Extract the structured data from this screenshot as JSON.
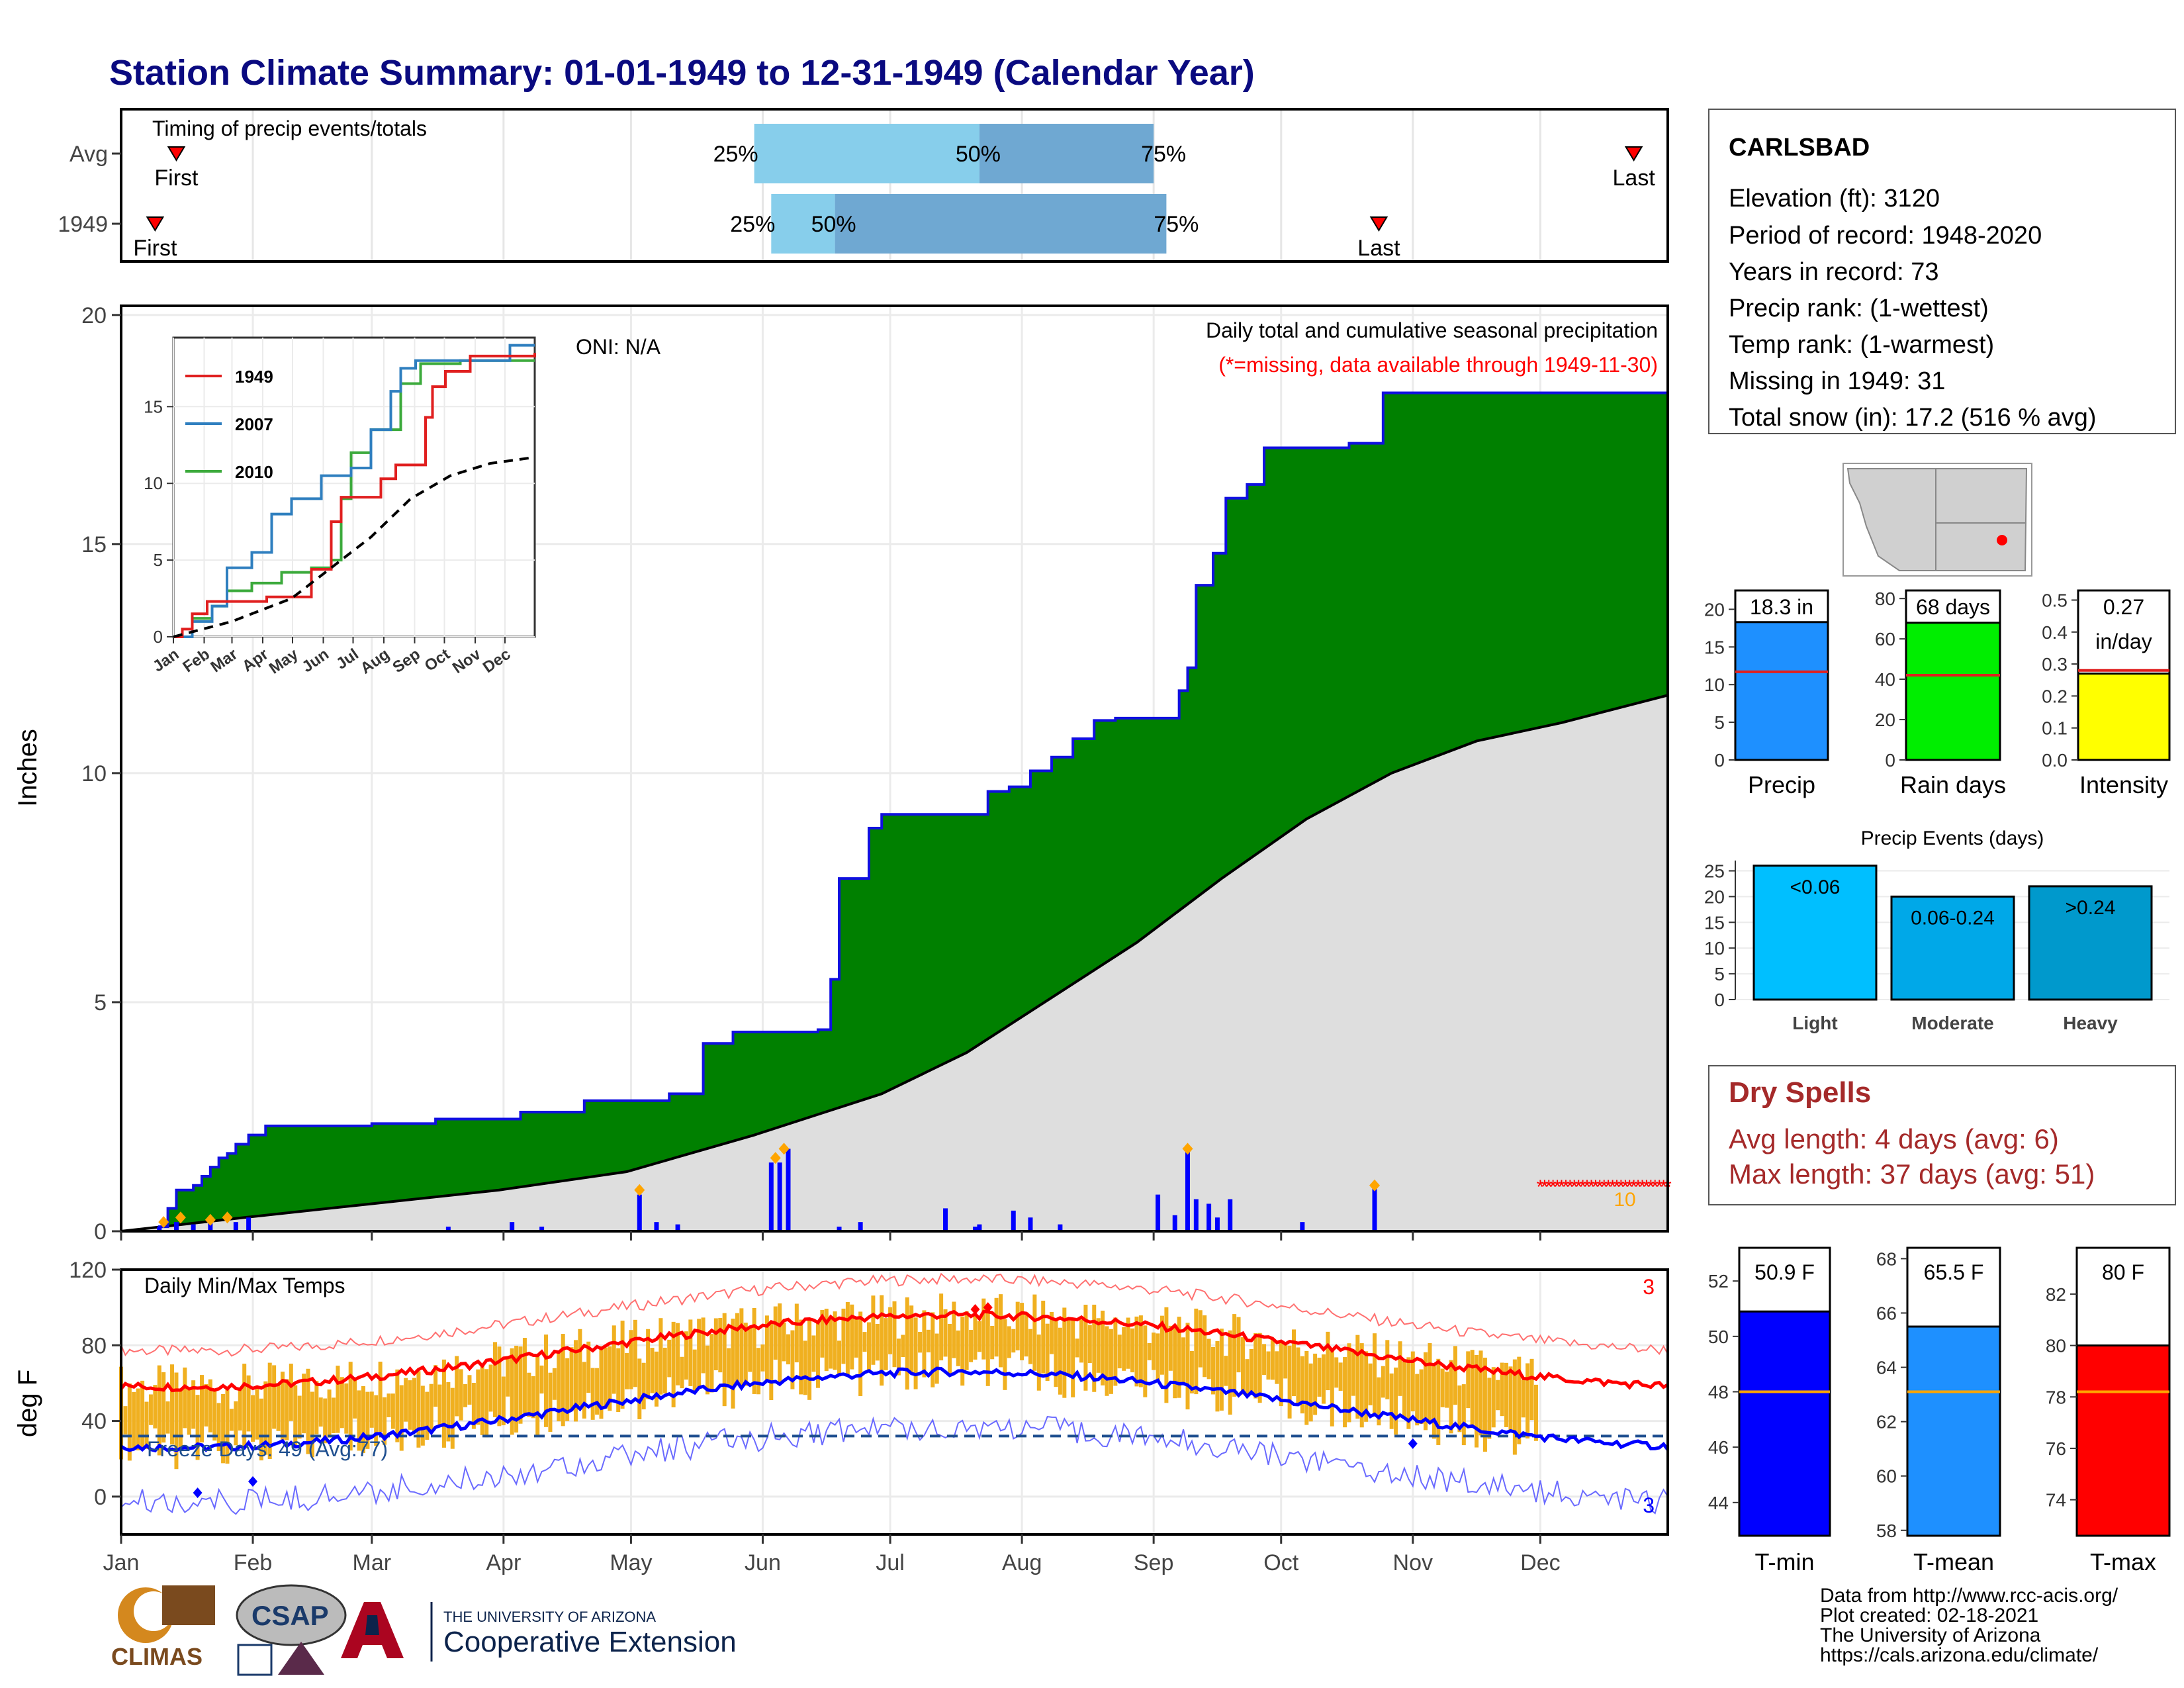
{
  "title": "Station Climate Summary: 01-01-1949 to 12-31-1949 (Calendar Year)",
  "months": [
    "Jan",
    "Feb",
    "Mar",
    "Apr",
    "May",
    "Jun",
    "Jul",
    "Aug",
    "Sep",
    "Oct",
    "Nov",
    "Dec"
  ],
  "timing": {
    "label": "Timing of precip events/totals",
    "rows": [
      {
        "name": "Avg",
        "first_doy": 14,
        "last_doy": 357,
        "q25": 150,
        "q50": 203,
        "q75": 244
      },
      {
        "name": "1949",
        "first_doy": 9,
        "last_doy": 297,
        "q25": 154,
        "q50": 169,
        "q75": 247
      }
    ],
    "first_label": "First",
    "last_label": "Last",
    "pct25": "25%",
    "pct50": "50%",
    "pct75": "75%"
  },
  "precip": {
    "oni": "ONI: N/A",
    "subtitle": "Daily total and cumulative seasonal precipitation",
    "missing_note": "(*=missing, data available through 1949-11-30)",
    "ylabel": "Inches",
    "yticks": [
      "0",
      "5",
      "10",
      "15",
      "20"
    ],
    "missing_count": "10",
    "cum_1949": [
      [
        1,
        0
      ],
      [
        10,
        0.1
      ],
      [
        12,
        0.5
      ],
      [
        14,
        0.9
      ],
      [
        18,
        1.0
      ],
      [
        20,
        1.2
      ],
      [
        22,
        1.4
      ],
      [
        24,
        1.6
      ],
      [
        26,
        1.7
      ],
      [
        28,
        1.9
      ],
      [
        31,
        2.1
      ],
      [
        35,
        2.3
      ],
      [
        50,
        2.3
      ],
      [
        60,
        2.35
      ],
      [
        75,
        2.45
      ],
      [
        95,
        2.6
      ],
      [
        110,
        2.85
      ],
      [
        125,
        2.85
      ],
      [
        130,
        3.0
      ],
      [
        135,
        3.0
      ],
      [
        138,
        4.1
      ],
      [
        145,
        4.35
      ],
      [
        165,
        4.4
      ],
      [
        168,
        5.5
      ],
      [
        170,
        7.7
      ],
      [
        174,
        7.7
      ],
      [
        177,
        8.8
      ],
      [
        180,
        9.1
      ],
      [
        200,
        9.1
      ],
      [
        205,
        9.6
      ],
      [
        210,
        9.7
      ],
      [
        215,
        10.05
      ],
      [
        220,
        10.35
      ],
      [
        225,
        10.75
      ],
      [
        230,
        11.15
      ],
      [
        235,
        11.2
      ],
      [
        245,
        11.2
      ],
      [
        250,
        11.8
      ],
      [
        252,
        12.3
      ],
      [
        254,
        14.1
      ],
      [
        258,
        14.8
      ],
      [
        261,
        16.0
      ],
      [
        266,
        16.3
      ],
      [
        270,
        17.1
      ],
      [
        285,
        17.1
      ],
      [
        290,
        17.2
      ],
      [
        296,
        17.2
      ],
      [
        298,
        18.3
      ],
      [
        365,
        18.3
      ]
    ],
    "cum_avg": [
      [
        1,
        0
      ],
      [
        30,
        0.3
      ],
      [
        60,
        0.6
      ],
      [
        90,
        0.9
      ],
      [
        120,
        1.3
      ],
      [
        150,
        2.1
      ],
      [
        180,
        3.0
      ],
      [
        200,
        3.9
      ],
      [
        220,
        5.1
      ],
      [
        240,
        6.3
      ],
      [
        260,
        7.7
      ],
      [
        280,
        9.0
      ],
      [
        300,
        10.0
      ],
      [
        320,
        10.7
      ],
      [
        340,
        11.1
      ],
      [
        365,
        11.7
      ]
    ],
    "daily": [
      [
        10,
        0.1
      ],
      [
        14,
        0.2
      ],
      [
        18,
        0.15
      ],
      [
        22,
        0.2
      ],
      [
        28,
        0.2
      ],
      [
        31,
        0.3
      ],
      [
        78,
        0.1
      ],
      [
        93,
        0.2
      ],
      [
        100,
        0.1
      ],
      [
        123,
        0.8
      ],
      [
        127,
        0.2
      ],
      [
        132,
        0.15
      ],
      [
        154,
        1.5
      ],
      [
        156,
        1.5
      ],
      [
        158,
        1.8
      ],
      [
        170,
        0.1
      ],
      [
        175,
        0.2
      ],
      [
        195,
        0.5
      ],
      [
        202,
        0.1
      ],
      [
        203,
        0.15
      ],
      [
        211,
        0.45
      ],
      [
        215,
        0.3
      ],
      [
        222,
        0.15
      ],
      [
        245,
        0.8
      ],
      [
        249,
        0.35
      ],
      [
        252,
        1.8
      ],
      [
        254,
        0.7
      ],
      [
        257,
        0.6
      ],
      [
        259,
        0.3
      ],
      [
        262,
        0.7
      ],
      [
        279,
        0.2
      ],
      [
        296,
        1.0
      ]
    ],
    "marked_days": [
      [
        11,
        0.2
      ],
      [
        15,
        0.3
      ],
      [
        22,
        0.25
      ],
      [
        26,
        0.3
      ],
      [
        123,
        0.9
      ],
      [
        155,
        1.6
      ],
      [
        157,
        1.8
      ],
      [
        252,
        1.8
      ],
      [
        296,
        1.0
      ]
    ],
    "missing_days": [
      335,
      365
    ]
  },
  "inset": {
    "legend": [
      {
        "name": "1949",
        "color": "#e01f1f"
      },
      {
        "name": "2007",
        "color": "#2f7fbf"
      },
      {
        "name": "2010",
        "color": "#3caa3c"
      }
    ],
    "yticks": [
      "0",
      "5",
      "10",
      "15"
    ],
    "ymax": 19.5,
    "y1949": [
      [
        1,
        0
      ],
      [
        10,
        0.5
      ],
      [
        20,
        1.5
      ],
      [
        35,
        2.3
      ],
      [
        95,
        2.6
      ],
      [
        140,
        4.4
      ],
      [
        155,
        4.4
      ],
      [
        160,
        7.5
      ],
      [
        170,
        9.1
      ],
      [
        210,
        10.3
      ],
      [
        225,
        11.2
      ],
      [
        245,
        11.2
      ],
      [
        255,
        14.3
      ],
      [
        262,
        16.3
      ],
      [
        275,
        17.3
      ],
      [
        300,
        18.3
      ],
      [
        365,
        18.5
      ]
    ],
    "y2007": [
      [
        1,
        0
      ],
      [
        20,
        1.0
      ],
      [
        40,
        2.0
      ],
      [
        55,
        4.5
      ],
      [
        80,
        5.5
      ],
      [
        100,
        8.0
      ],
      [
        120,
        9.0
      ],
      [
        140,
        9.0
      ],
      [
        150,
        10.5
      ],
      [
        180,
        11.0
      ],
      [
        200,
        13.5
      ],
      [
        220,
        16.0
      ],
      [
        230,
        17.5
      ],
      [
        245,
        18.0
      ],
      [
        330,
        18.0
      ],
      [
        340,
        19.0
      ],
      [
        365,
        19.0
      ]
    ],
    "y2010": [
      [
        1,
        0
      ],
      [
        20,
        1.2
      ],
      [
        40,
        2.0
      ],
      [
        55,
        3.0
      ],
      [
        80,
        3.5
      ],
      [
        110,
        4.2
      ],
      [
        140,
        4.5
      ],
      [
        160,
        5.0
      ],
      [
        170,
        9.0
      ],
      [
        180,
        12.0
      ],
      [
        200,
        13.5
      ],
      [
        230,
        16.5
      ],
      [
        250,
        17.8
      ],
      [
        290,
        18.0
      ],
      [
        365,
        18.0
      ]
    ],
    "yavg": [
      [
        1,
        0
      ],
      [
        60,
        1.0
      ],
      [
        120,
        2.5
      ],
      [
        160,
        4.5
      ],
      [
        200,
        6.5
      ],
      [
        240,
        9.0
      ],
      [
        280,
        10.5
      ],
      [
        320,
        11.3
      ],
      [
        365,
        11.7
      ]
    ]
  },
  "temps": {
    "label": "Daily Min/Max Temps",
    "ylabel": "deg F",
    "yticks": [
      "0",
      "40",
      "80",
      "120"
    ],
    "freeze_text": "Freeze Days: 49 (Avg:77)",
    "record_high_count": "3",
    "record_low_count": "3",
    "freeze_line": 32
  },
  "station": {
    "name": "CARLSBAD",
    "elevation": "Elevation (ft): 3120",
    "period": "Period of record: 1948-2020",
    "years": "Years in record: 73",
    "precip_rank": "Precip rank:  (1-wettest)",
    "temp_rank": "Temp rank:  (1-warmest)",
    "missing": "Missing in 1949: 31",
    "snow": "Total snow (in): 17.2 (516 % avg)"
  },
  "bars_top": [
    {
      "name": "Precip",
      "label": "18.3 in",
      "value": 18.3,
      "avg": 11.7,
      "ymax": 22.5,
      "ticks": [
        "0",
        "5",
        "10",
        "15",
        "20"
      ],
      "tickvals": [
        0,
        5,
        10,
        15,
        20
      ],
      "color": "#1e90ff"
    },
    {
      "name": "Rain days",
      "label": "68 days",
      "value": 68,
      "avg": 42,
      "ymax": 84,
      "ticks": [
        "0",
        "20",
        "40",
        "60",
        "80"
      ],
      "tickvals": [
        0,
        20,
        40,
        60,
        80
      ],
      "color": "#00ee00"
    },
    {
      "name": "Intensity",
      "label": "0.27",
      "label2": "in/day",
      "value": 0.27,
      "avg": 0.28,
      "ymax": 0.53,
      "ticks": [
        "0.0",
        "0.1",
        "0.2",
        "0.3",
        "0.4",
        "0.5"
      ],
      "tickvals": [
        0,
        0.1,
        0.2,
        0.3,
        0.4,
        0.5
      ],
      "color": "#ffff00"
    }
  ],
  "events": {
    "title": "Precip Events (days)",
    "ticks": [
      "0",
      "5",
      "10",
      "15",
      "20",
      "25"
    ],
    "bars": [
      {
        "name": "Light",
        "label": "<0.06",
        "value": 26,
        "color": "#00bfff"
      },
      {
        "name": "Moderate",
        "label": "0.06-0.24",
        "value": 20,
        "color": "#00a8e8"
      },
      {
        "name": "Heavy",
        "label": ">0.24",
        "value": 22,
        "color": "#0099cc"
      }
    ]
  },
  "dry": {
    "title": "Dry Spells",
    "avg": "Avg length: 4 days (avg: 6)",
    "max": "Max length: 37 days (avg: 51)"
  },
  "bars_temp": [
    {
      "name": "T-min",
      "label": "50.9 F",
      "value": 50.9,
      "avg": 48.0,
      "ymin": 42.8,
      "ymax": 53.2,
      "ticks": [
        "44",
        "46",
        "48",
        "50",
        "52"
      ],
      "tickvals": [
        44,
        46,
        48,
        50,
        52
      ],
      "color": "#0000ff"
    },
    {
      "name": "T-mean",
      "label": "65.5 F",
      "value": 65.5,
      "avg": 63.1,
      "ymin": 57.8,
      "ymax": 68.4,
      "ticks": [
        "58",
        "60",
        "62",
        "64",
        "66",
        "68"
      ],
      "tickvals": [
        58,
        60,
        62,
        64,
        66,
        68
      ],
      "color": "#1e90ff"
    },
    {
      "name": "T-max",
      "label": "80 F",
      "value": 80.0,
      "avg": 78.2,
      "ymin": 72.6,
      "ymax": 83.8,
      "ticks": [
        "74",
        "76",
        "78",
        "80",
        "82"
      ],
      "tickvals": [
        74,
        76,
        78,
        80,
        82
      ],
      "color": "#ff0000"
    }
  ],
  "logos": {
    "climas": "CLIMAS",
    "csap": "CSAP",
    "ua_small": "THE UNIVERSITY OF ARIZONA",
    "ua_big": "Cooperative Extension"
  },
  "footer": [
    "Data from http://www.rcc-acis.org/",
    "Plot created: 02-18-2021",
    "The University of Arizona",
    "https://cals.arizona.edu/climate/"
  ]
}
